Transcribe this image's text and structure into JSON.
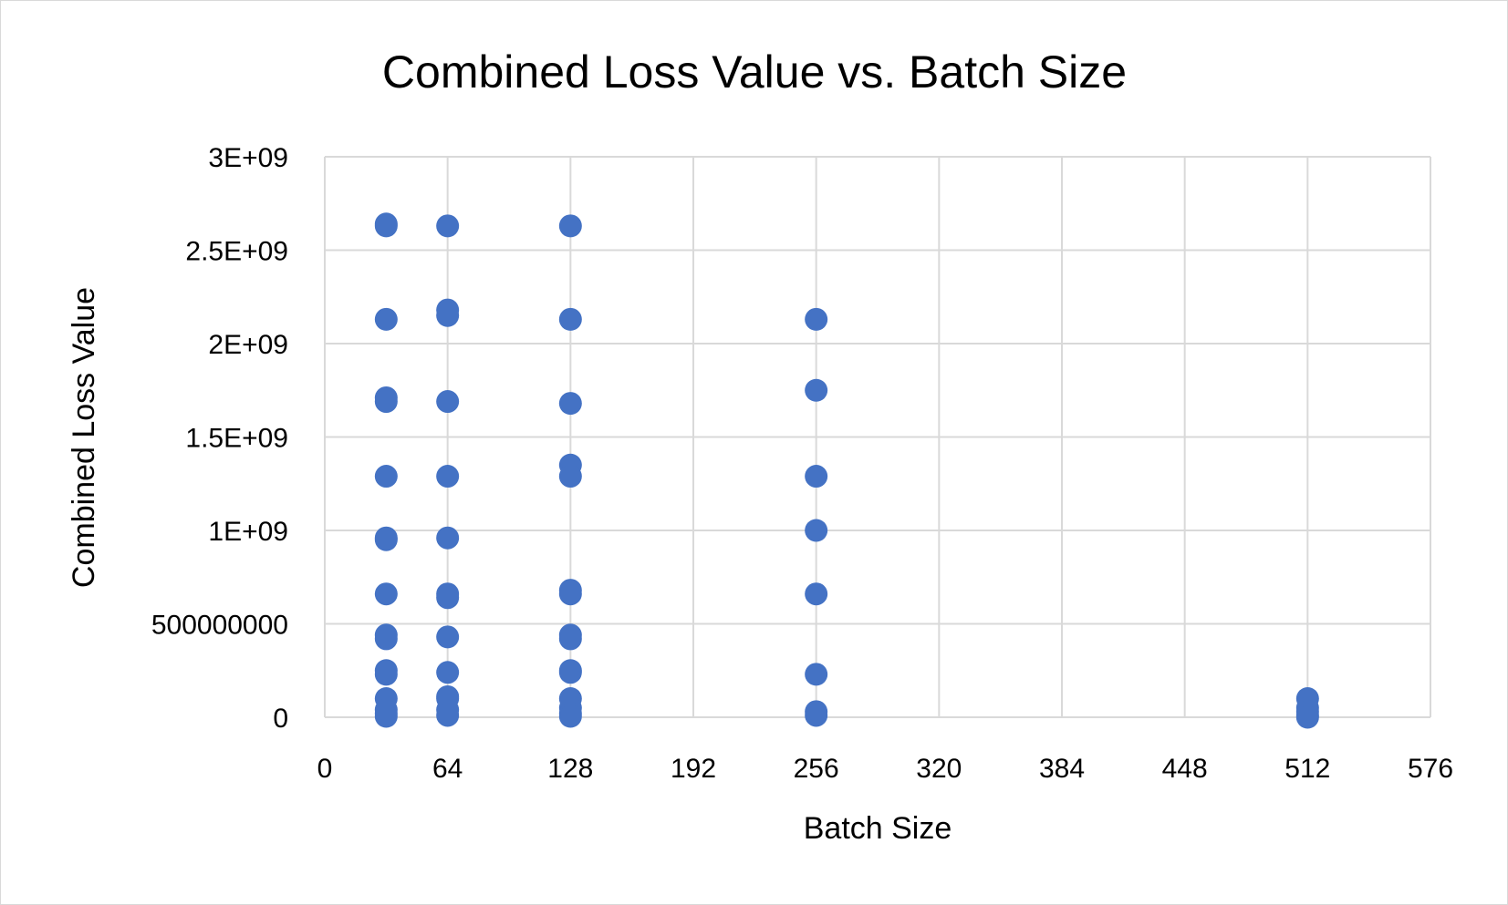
{
  "chart_data": {
    "type": "scatter",
    "title": "Combined Loss Value vs. Batch Size",
    "xlabel": "Batch Size",
    "ylabel": "Combined Loss Value",
    "xlim": [
      0,
      576
    ],
    "ylim": [
      0,
      3000000000
    ],
    "x_ticks": [
      0,
      64,
      128,
      192,
      256,
      320,
      384,
      448,
      512,
      576
    ],
    "x_tick_labels": [
      "0",
      "64",
      "128",
      "192",
      "256",
      "320",
      "384",
      "448",
      "512",
      "576"
    ],
    "y_ticks": [
      0,
      500000000,
      1000000000,
      1500000000,
      2000000000,
      2500000000,
      3000000000
    ],
    "y_tick_labels": [
      "0",
      "500000000",
      "1E+09",
      "1.5E+09",
      "2E+09",
      "2.5E+09",
      "3E+09"
    ],
    "grid": true,
    "legend": "none",
    "marker_color": "#4472C4",
    "series": [
      {
        "points": [
          [
            32,
            2630000000
          ],
          [
            32,
            2640000000
          ],
          [
            32,
            2130000000
          ],
          [
            32,
            1710000000
          ],
          [
            32,
            1690000000
          ],
          [
            32,
            1290000000
          ],
          [
            32,
            960000000
          ],
          [
            32,
            950000000
          ],
          [
            32,
            660000000
          ],
          [
            32,
            440000000
          ],
          [
            32,
            420000000
          ],
          [
            32,
            250000000
          ],
          [
            32,
            230000000
          ],
          [
            32,
            100000000
          ],
          [
            32,
            40000000
          ],
          [
            32,
            20000000
          ],
          [
            32,
            5000000
          ],
          [
            64,
            2630000000
          ],
          [
            64,
            2180000000
          ],
          [
            64,
            2150000000
          ],
          [
            64,
            1690000000
          ],
          [
            64,
            1290000000
          ],
          [
            64,
            960000000
          ],
          [
            64,
            660000000
          ],
          [
            64,
            640000000
          ],
          [
            64,
            430000000
          ],
          [
            64,
            240000000
          ],
          [
            64,
            110000000
          ],
          [
            64,
            100000000
          ],
          [
            64,
            40000000
          ],
          [
            64,
            10000000
          ],
          [
            128,
            2630000000
          ],
          [
            128,
            2130000000
          ],
          [
            128,
            1680000000
          ],
          [
            128,
            1350000000
          ],
          [
            128,
            1290000000
          ],
          [
            128,
            680000000
          ],
          [
            128,
            660000000
          ],
          [
            128,
            440000000
          ],
          [
            128,
            420000000
          ],
          [
            128,
            250000000
          ],
          [
            128,
            240000000
          ],
          [
            128,
            100000000
          ],
          [
            128,
            50000000
          ],
          [
            128,
            20000000
          ],
          [
            128,
            5000000
          ],
          [
            256,
            2130000000
          ],
          [
            256,
            1750000000
          ],
          [
            256,
            1290000000
          ],
          [
            256,
            1000000000
          ],
          [
            256,
            660000000
          ],
          [
            256,
            230000000
          ],
          [
            256,
            30000000
          ],
          [
            256,
            10000000
          ],
          [
            512,
            100000000
          ],
          [
            512,
            50000000
          ],
          [
            512,
            30000000
          ],
          [
            512,
            10000000
          ],
          [
            512,
            0
          ]
        ]
      }
    ]
  }
}
